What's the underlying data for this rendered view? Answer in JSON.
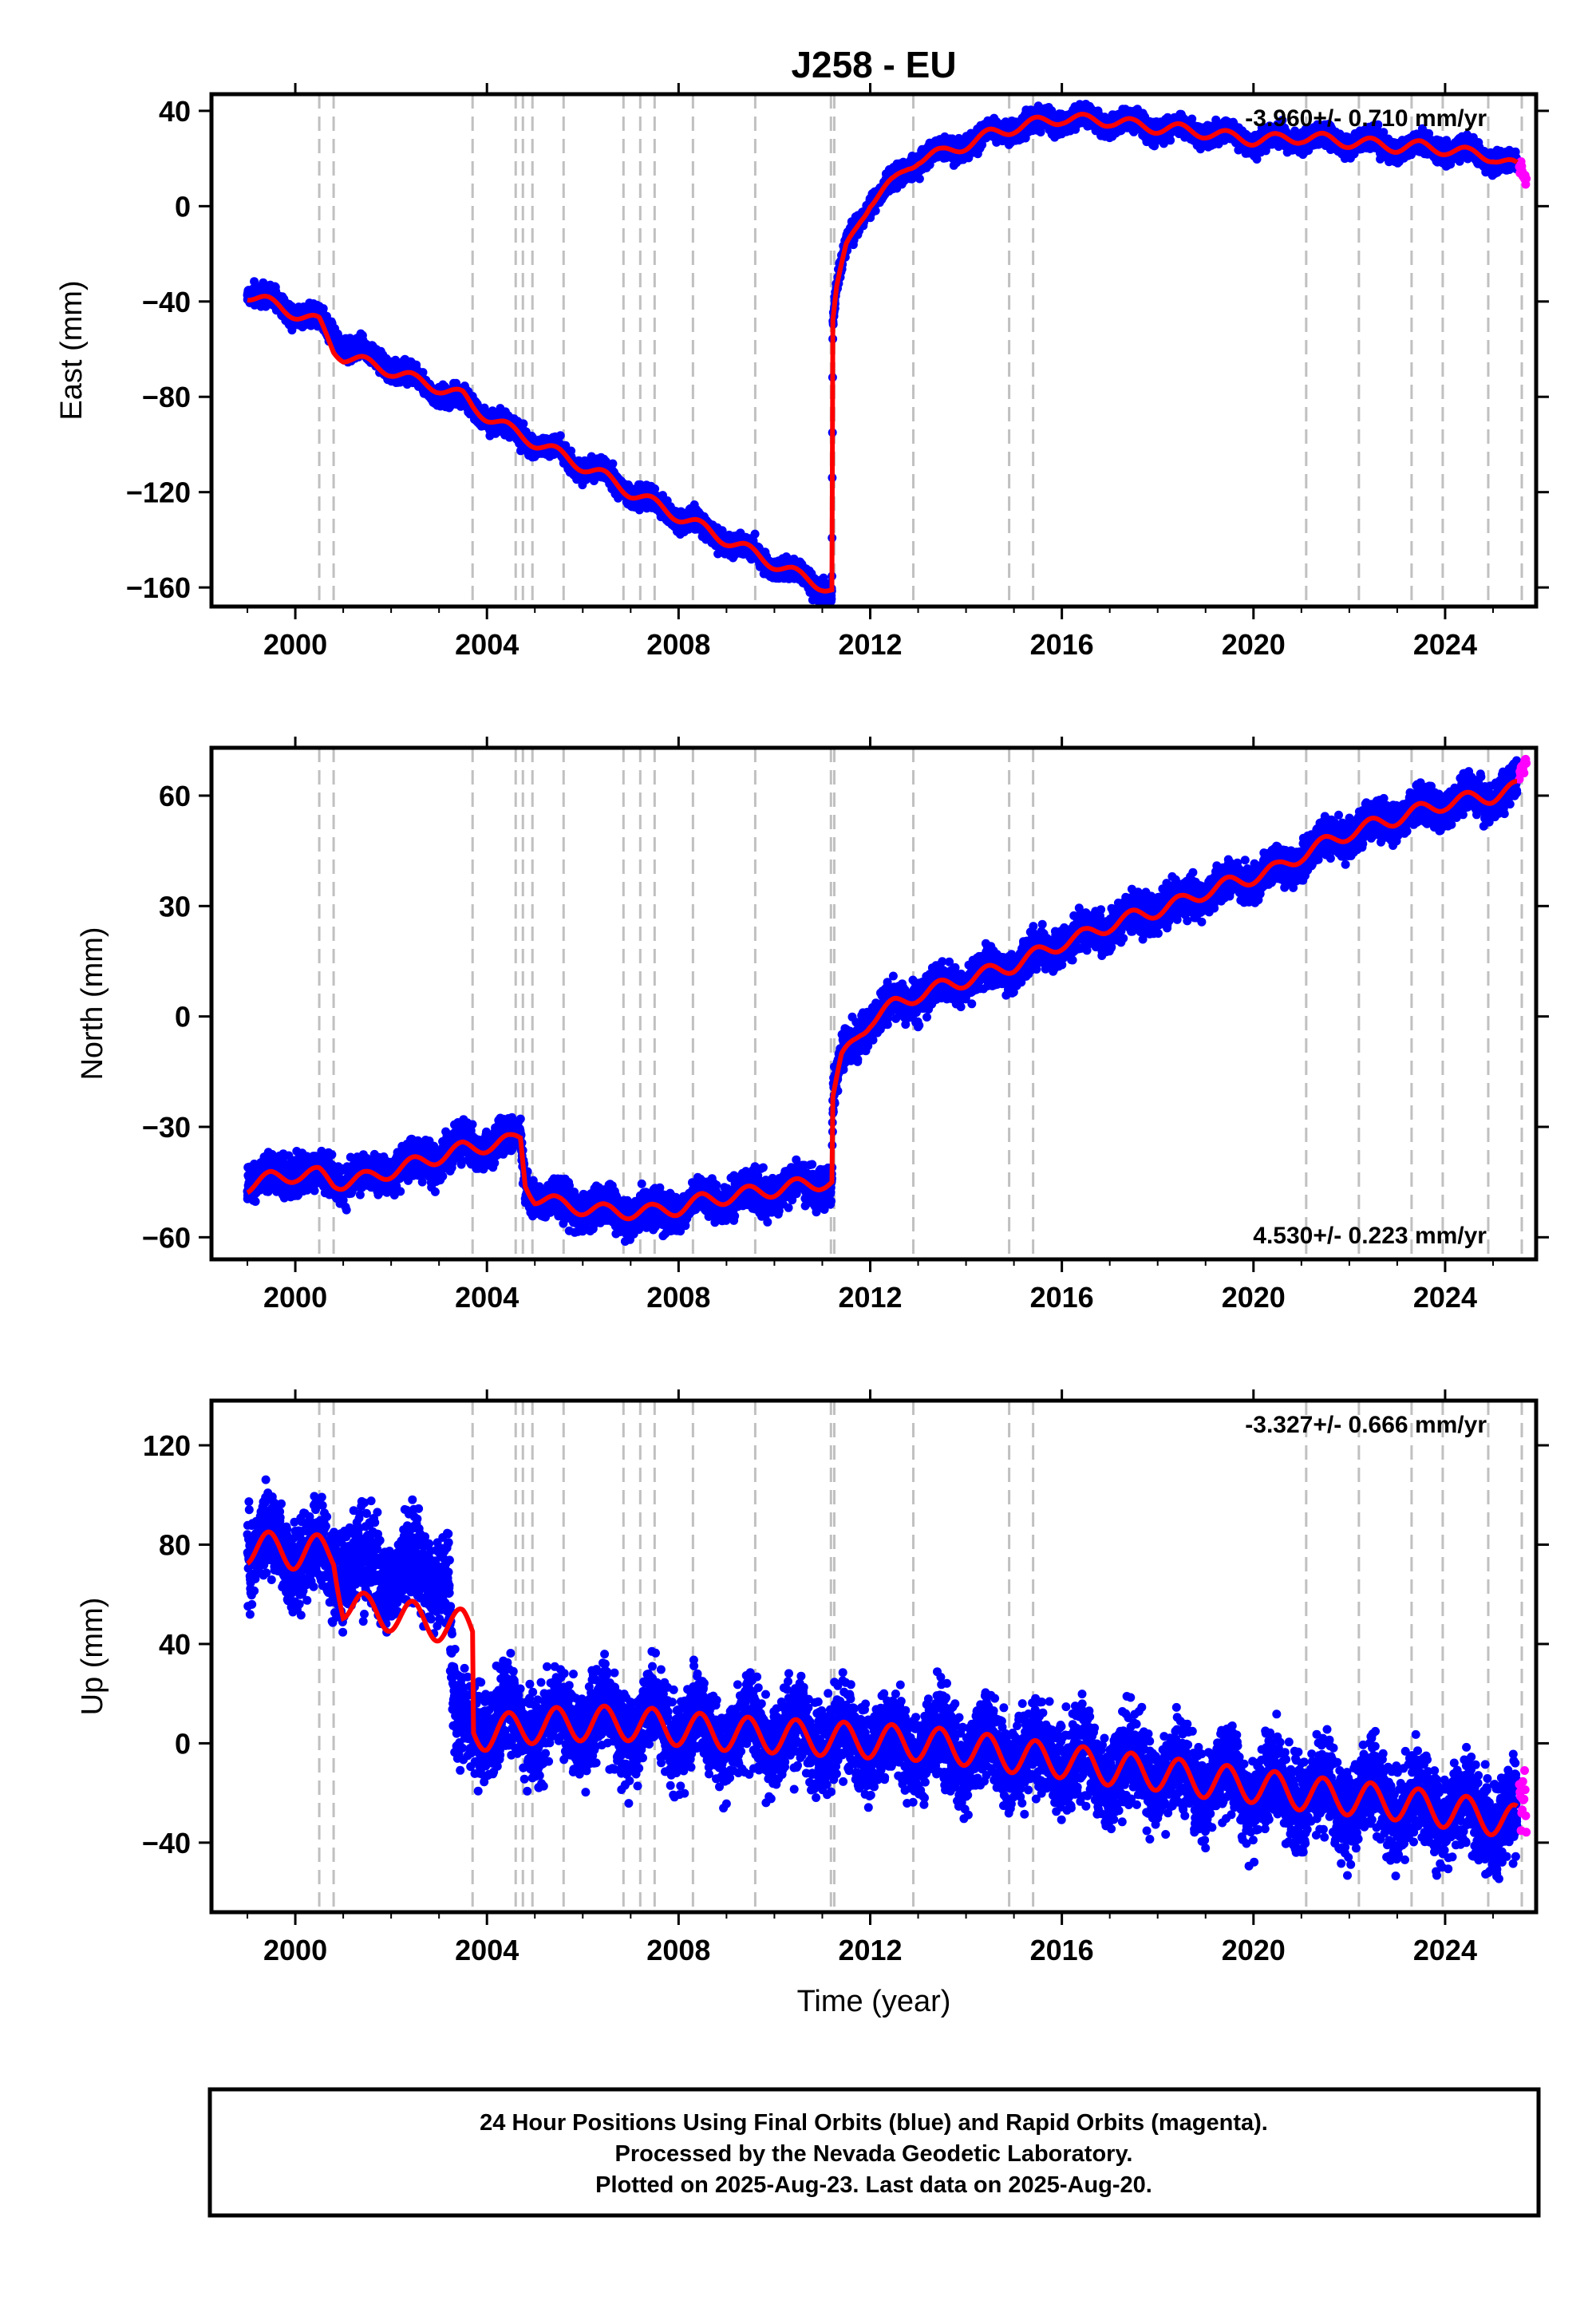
{
  "title": "J258 - EU",
  "colors": {
    "final": "#0000ff",
    "rapid": "#ff00ff",
    "model": "#ff0000",
    "events": "#c0c0c0"
  },
  "footer": {
    "line1": "24 Hour Positions Using Final Orbits (blue) and Rapid Orbits (magenta).",
    "line2": "Processed by the Nevada Geodetic Laboratory.",
    "line3": "Plotted on 2025-Aug-23. Last data on 2025-Aug-20."
  },
  "chart_data": [
    {
      "type": "scatter",
      "title": "J258 - EU",
      "xlabel": "",
      "ylabel": "East (mm)",
      "rate_label": "-3.960+/- 0.710 mm/yr",
      "rate_position": "top-right",
      "xlim": [
        1998.25,
        2025.9
      ],
      "ylim": [
        -168,
        47
      ],
      "xticks": [
        2000,
        2004,
        2008,
        2012,
        2016,
        2020,
        2024
      ],
      "xtick_labels": [
        "2000",
        "2004",
        "2008",
        "2012",
        "2016",
        "2020",
        "2024"
      ],
      "yticks": [
        -160,
        -120,
        -80,
        -40,
        0,
        40
      ],
      "ytick_labels": [
        "−160",
        "−120",
        "−80",
        "−40",
        "0",
        "40"
      ],
      "event_lines": [
        2000.5,
        2000.8,
        2003.7,
        2004.6,
        2004.75,
        2004.95,
        2005.6,
        2006.85,
        2007.2,
        2007.5,
        2008.3,
        2009.6,
        2011.18,
        2011.25,
        2012.9,
        2014.9,
        2015.4,
        2021.1,
        2022.2,
        2023.3,
        2023.95,
        2024.9,
        2025.6
      ],
      "seasonal_amp": 2.5,
      "series": [
        {
          "name": "Final Orbits (blue)",
          "noise": 2.2,
          "x": [
            1999.0,
            1999.5,
            2000.0,
            2000.5,
            2000.8,
            2001.0,
            2001.5,
            2002.0,
            2002.5,
            2003.0,
            2003.5,
            2003.7,
            2004.0,
            2004.5,
            2005.0,
            2005.5,
            2006.0,
            2006.5,
            2007.0,
            2007.5,
            2008.0,
            2008.5,
            2009.0,
            2009.5,
            2010.0,
            2010.5,
            2011.0,
            2011.2,
            2011.22,
            2011.3,
            2011.5,
            2011.8,
            2012.0,
            2012.5,
            2012.8,
            2013.0,
            2013.5,
            2014.0,
            2014.5,
            2015.0,
            2015.5,
            2016.0,
            2016.5,
            2017.0,
            2017.5,
            2018.0,
            2018.5,
            2019.0,
            2019.5,
            2020.0,
            2020.5,
            2021.0,
            2021.5,
            2022.0,
            2022.5,
            2023.0,
            2023.5,
            2024.0,
            2024.5,
            2025.0,
            2025.5
          ],
          "y": [
            -35,
            -40,
            -44,
            -48,
            -53,
            -58,
            -63,
            -67,
            -73,
            -78,
            -82,
            -84,
            -88,
            -94,
            -99,
            -104,
            -109,
            -114,
            -120,
            -125,
            -130,
            -135,
            -140,
            -145,
            -150,
            -155,
            -160,
            -162,
            -48,
            -35,
            -18,
            -5,
            2,
            10,
            17,
            20,
            22,
            26,
            30,
            33,
            35,
            37,
            36,
            36,
            34,
            33,
            32,
            31,
            29,
            28,
            28,
            29,
            28,
            27,
            26,
            25,
            25,
            24,
            22,
            21,
            16
          ]
        },
        {
          "name": "Rapid Orbits (magenta)",
          "noise": 1.5,
          "x": [
            2025.55,
            2025.6,
            2025.65,
            2025.7
          ],
          "y": [
            13,
            15,
            12,
            11
          ]
        },
        {
          "name": "model",
          "line": true,
          "x": [
            1999.0,
            1999.5,
            2000.0,
            2000.5,
            2000.8,
            2001.0,
            2001.5,
            2002.0,
            2002.5,
            2003.0,
            2003.5,
            2003.7,
            2004.0,
            2004.5,
            2005.0,
            2005.5,
            2006.0,
            2006.5,
            2007.0,
            2007.5,
            2008.0,
            2008.5,
            2009.0,
            2009.5,
            2010.0,
            2010.5,
            2011.0,
            2011.2,
            2011.22,
            2011.3,
            2011.5,
            2011.8,
            2012.0,
            2012.5,
            2012.8,
            2013.0,
            2013.5,
            2014.0,
            2014.5,
            2015.0,
            2015.5,
            2016.0,
            2016.5,
            2017.0,
            2017.5,
            2018.0,
            2018.5,
            2019.0,
            2019.5,
            2020.0,
            2020.5,
            2021.0,
            2021.5,
            2022.0,
            2022.5,
            2023.0,
            2023.5,
            2024.0,
            2024.5,
            2025.0,
            2025.5
          ],
          "y": [
            -37,
            -41,
            -45,
            -49,
            -60,
            -63,
            -66,
            -69,
            -73,
            -76,
            -80,
            -84,
            -88,
            -94,
            -99,
            -104,
            -109,
            -114,
            -120,
            -125,
            -130,
            -135,
            -140,
            -145,
            -150,
            -155,
            -159,
            -161,
            -48,
            -35,
            -18,
            -5,
            2,
            10,
            17,
            20,
            22,
            26,
            30,
            33,
            35,
            37,
            36,
            36,
            34,
            33,
            32,
            31,
            29,
            28,
            28,
            29,
            28,
            27,
            26,
            25,
            25,
            24,
            22,
            21,
            16
          ]
        }
      ]
    },
    {
      "type": "scatter",
      "xlabel": "",
      "ylabel": "North (mm)",
      "rate_label": "4.530+/- 0.223 mm/yr",
      "rate_position": "bottom-right",
      "xlim": [
        1998.25,
        2025.9
      ],
      "ylim": [
        -66,
        73
      ],
      "xticks": [
        2000,
        2004,
        2008,
        2012,
        2016,
        2020,
        2024
      ],
      "xtick_labels": [
        "2000",
        "2004",
        "2008",
        "2012",
        "2016",
        "2020",
        "2024"
      ],
      "yticks": [
        -60,
        -30,
        0,
        30,
        60
      ],
      "ytick_labels": [
        "−60",
        "−30",
        "0",
        "30",
        "60"
      ],
      "event_lines": [
        2000.5,
        2000.8,
        2003.7,
        2004.6,
        2004.75,
        2004.95,
        2005.6,
        2006.85,
        2007.2,
        2007.5,
        2008.3,
        2009.6,
        2011.18,
        2011.25,
        2012.9,
        2014.9,
        2015.4,
        2021.1,
        2022.2,
        2023.3,
        2023.95,
        2024.9,
        2025.6
      ],
      "seasonal_amp": 2.0,
      "series": [
        {
          "name": "Final Orbits (blue)",
          "noise": 2.5,
          "x": [
            1999.0,
            1999.5,
            2000.0,
            2000.5,
            2001.0,
            2001.5,
            2002.0,
            2002.5,
            2003.0,
            2003.5,
            2004.0,
            2004.5,
            2004.7,
            2004.8,
            2005.0,
            2005.5,
            2006.0,
            2006.5,
            2007.0,
            2007.5,
            2008.0,
            2008.5,
            2009.0,
            2009.5,
            2010.0,
            2010.5,
            2011.0,
            2011.2,
            2011.22,
            2011.4,
            2011.8,
            2012.0,
            2012.5,
            2013.0,
            2013.5,
            2014.0,
            2014.5,
            2015.0,
            2015.5,
            2016.0,
            2016.5,
            2017.0,
            2017.5,
            2018.0,
            2018.5,
            2019.0,
            2019.5,
            2020.0,
            2020.5,
            2021.0,
            2021.5,
            2022.0,
            2022.5,
            2023.0,
            2023.5,
            2024.0,
            2024.5,
            2025.0,
            2025.5
          ],
          "y": [
            -45,
            -44,
            -42,
            -43,
            -44,
            -43,
            -41,
            -40,
            -38,
            -36,
            -35,
            -34,
            -33,
            -45,
            -49,
            -51,
            -52,
            -53,
            -53,
            -53,
            -52,
            -50,
            -49,
            -48,
            -47,
            -46,
            -45,
            -45,
            -22,
            -12,
            -4,
            -1,
            3,
            6,
            8,
            10,
            12,
            14,
            17,
            20,
            22,
            25,
            27,
            29,
            31,
            34,
            36,
            38,
            40,
            44,
            47,
            50,
            52,
            54,
            56,
            58,
            59,
            60,
            62
          ]
        },
        {
          "name": "Rapid Orbits (magenta)",
          "noise": 1.2,
          "x": [
            2025.55,
            2025.6,
            2025.65,
            2025.7
          ],
          "y": [
            64,
            66,
            67,
            68
          ]
        },
        {
          "name": "model",
          "line": true,
          "x": [
            1999.0,
            1999.5,
            2000.0,
            2000.5,
            2000.8,
            2001.0,
            2001.5,
            2002.0,
            2002.5,
            2003.0,
            2003.5,
            2004.0,
            2004.5,
            2004.7,
            2004.8,
            2005.0,
            2005.5,
            2006.0,
            2006.5,
            2007.0,
            2007.5,
            2008.0,
            2008.5,
            2009.0,
            2009.5,
            2010.0,
            2010.5,
            2011.0,
            2011.2,
            2011.22,
            2011.4,
            2011.8,
            2012.0,
            2012.5,
            2013.0,
            2013.5,
            2014.0,
            2014.5,
            2015.0,
            2015.5,
            2016.0,
            2016.5,
            2017.0,
            2017.5,
            2018.0,
            2018.5,
            2019.0,
            2019.5,
            2020.0,
            2020.5,
            2021.0,
            2021.5,
            2022.0,
            2022.5,
            2023.0,
            2023.5,
            2024.0,
            2024.5,
            2025.0,
            2025.5
          ],
          "y": [
            -46,
            -44,
            -43,
            -43,
            -45,
            -45,
            -44,
            -42,
            -40,
            -38,
            -36,
            -35,
            -34,
            -33,
            -45,
            -49,
            -51,
            -52,
            -53,
            -53,
            -53,
            -52,
            -50,
            -49,
            -48,
            -47,
            -46,
            -45,
            -45,
            -22,
            -12,
            -4,
            -1,
            3,
            6,
            8,
            10,
            12,
            14,
            17,
            20,
            22,
            25,
            27,
            29,
            31,
            34,
            36,
            38,
            40,
            44,
            47,
            50,
            52,
            54,
            56,
            58,
            59,
            60,
            62
          ]
        }
      ]
    },
    {
      "type": "scatter",
      "xlabel": "Time (year)",
      "ylabel": "Up (mm)",
      "rate_label": "-3.327+/- 0.666 mm/yr",
      "rate_position": "top-right",
      "xlim": [
        1998.25,
        2025.9
      ],
      "ylim": [
        -68,
        138
      ],
      "xticks": [
        2000,
        2004,
        2008,
        2012,
        2016,
        2020,
        2024
      ],
      "xtick_labels": [
        "2000",
        "2004",
        "2008",
        "2012",
        "2016",
        "2020",
        "2024"
      ],
      "yticks": [
        -40,
        0,
        40,
        80,
        120
      ],
      "ytick_labels": [
        "−40",
        "0",
        "40",
        "80",
        "120"
      ],
      "event_lines": [
        2000.5,
        2000.8,
        2003.7,
        2004.6,
        2004.75,
        2004.95,
        2005.6,
        2006.85,
        2007.2,
        2007.5,
        2008.3,
        2009.6,
        2011.18,
        2011.25,
        2012.9,
        2014.9,
        2015.4,
        2021.1,
        2022.2,
        2023.3,
        2023.95,
        2024.9,
        2025.6
      ],
      "seasonal_amp": 7.0,
      "series": [
        {
          "name": "Final Orbits (blue)",
          "noise": 9,
          "x": [
            1999.0,
            1999.5,
            2000.0,
            2000.5,
            2000.8,
            2001.0,
            2001.5,
            2002.0,
            2002.5,
            2003.0,
            2003.2,
            2003.3,
            2003.5,
            2004.0,
            2005.0,
            2006.0,
            2007.0,
            2008.0,
            2009.0,
            2010.0,
            2011.0,
            2012.0,
            2013.0,
            2014.0,
            2015.0,
            2016.0,
            2017.0,
            2018.0,
            2019.0,
            2020.0,
            2021.0,
            2022.0,
            2023.0,
            2024.0,
            2025.0,
            2025.5
          ],
          "y": [
            80,
            78,
            76,
            75,
            74,
            72,
            70,
            70,
            70,
            70,
            70,
            8,
            8,
            6,
            7,
            8,
            8,
            6,
            4,
            3,
            2,
            1,
            0,
            -2,
            -5,
            -7,
            -10,
            -12,
            -15,
            -17,
            -20,
            -22,
            -24,
            -27,
            -30,
            -32
          ]
        },
        {
          "name": "Rapid Orbits (magenta)",
          "noise": 6,
          "x": [
            2025.55,
            2025.6,
            2025.65,
            2025.7
          ],
          "y": [
            -25,
            -30,
            -20,
            -35
          ]
        },
        {
          "name": "model",
          "line": true,
          "x": [
            1999.0,
            1999.5,
            2000.0,
            2000.5,
            2000.8,
            2001.0,
            2001.5,
            2002.0,
            2002.5,
            2003.0,
            2003.5,
            2003.7,
            2003.72,
            2004.0,
            2005.0,
            2006.0,
            2007.0,
            2008.0,
            2009.0,
            2010.0,
            2011.0,
            2012.0,
            2013.0,
            2014.0,
            2015.0,
            2016.0,
            2017.0,
            2018.0,
            2019.0,
            2020.0,
            2021.0,
            2022.0,
            2023.0,
            2024.0,
            2025.0,
            2025.5
          ],
          "y": [
            79,
            78,
            77,
            77,
            76,
            57,
            53,
            52,
            50,
            48,
            47,
            45,
            5,
            4,
            7,
            8,
            8,
            6,
            4,
            3,
            2,
            1,
            0,
            -2,
            -5,
            -7,
            -10,
            -12,
            -15,
            -17,
            -20,
            -22,
            -24,
            -27,
            -30,
            -32
          ]
        }
      ]
    }
  ]
}
